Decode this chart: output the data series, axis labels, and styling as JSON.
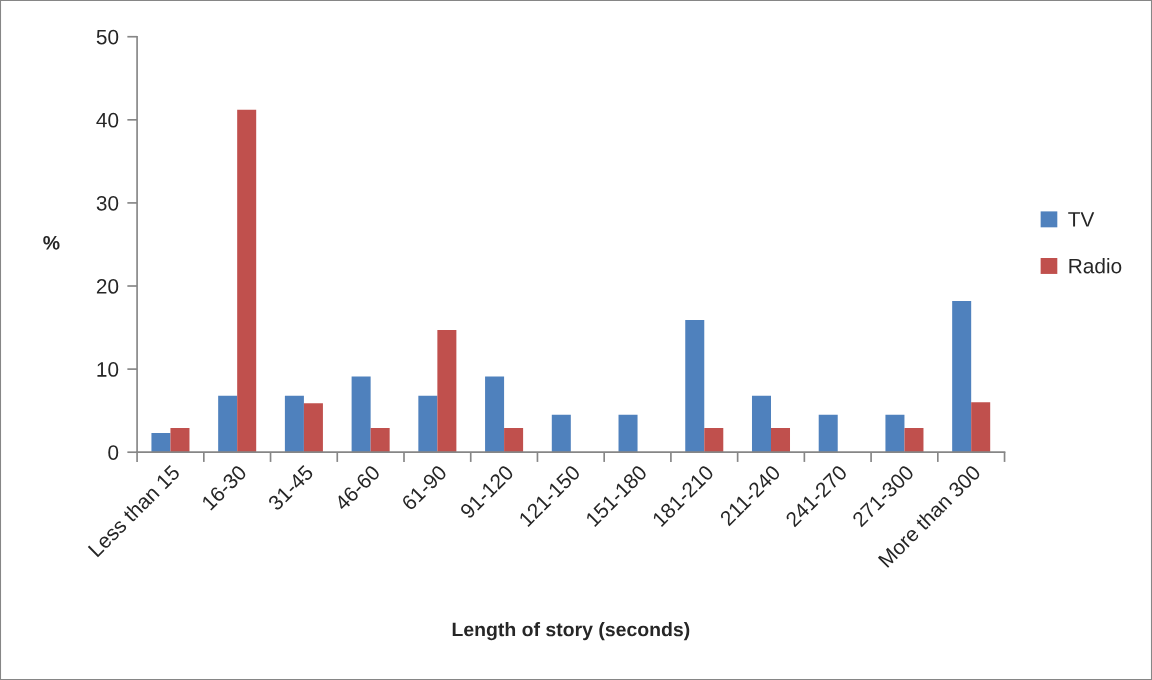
{
  "chart_data": {
    "type": "bar",
    "xlabel": "Length of story (seconds)",
    "ylabel": "%",
    "categories": [
      "Less than 15",
      "16-30",
      "31-45",
      "46-60",
      "61-90",
      "91-120",
      "121-150",
      "151-180",
      "181-210",
      "211-240",
      "241-270",
      "271-300",
      "More than 300"
    ],
    "series": [
      {
        "name": "TV",
        "color": "#4f81bd",
        "values": [
          2.3,
          6.8,
          6.8,
          9.1,
          6.8,
          9.1,
          4.5,
          4.5,
          15.9,
          6.8,
          4.5,
          4.5,
          18.2
        ]
      },
      {
        "name": "Radio",
        "color": "#c0504d",
        "values": [
          2.9,
          41.2,
          5.9,
          2.9,
          14.7,
          2.9,
          null,
          null,
          2.9,
          2.9,
          null,
          2.9,
          6.0
        ]
      }
    ],
    "ylim": [
      0,
      50
    ],
    "yticks": [
      0,
      10,
      20,
      30,
      40,
      50
    ],
    "grid": false,
    "legend": "right"
  }
}
